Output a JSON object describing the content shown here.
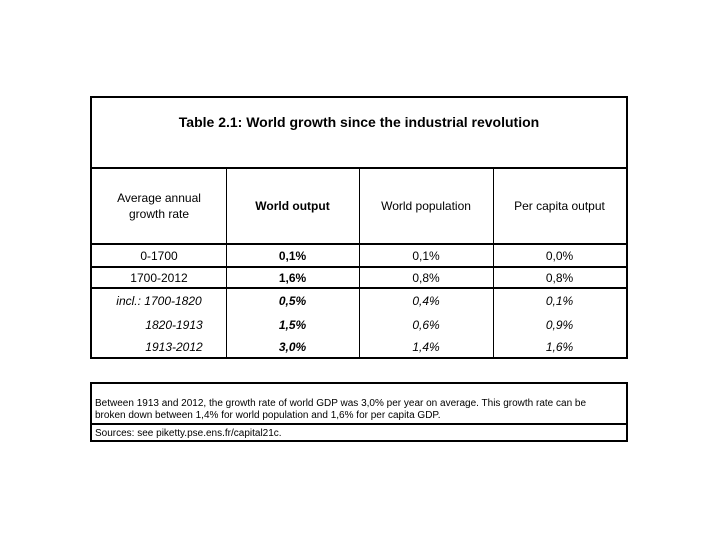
{
  "table": {
    "title": "Table 2.1: World growth since the industrial revolution",
    "headers": [
      "Average annual growth rate",
      "World output",
      "World population",
      "Per capita output"
    ],
    "rows": [
      {
        "label": "0-1700",
        "output": "0,1%",
        "population": "0,1%",
        "per_capita": "0,0%"
      },
      {
        "label": "1700-2012",
        "output": "1,6%",
        "population": "0,8%",
        "per_capita": "0,8%"
      },
      {
        "label": "incl.: 1700-1820",
        "output": "0,5%",
        "population": "0,4%",
        "per_capita": "0,1%"
      },
      {
        "label": "1820-1913",
        "output": "1,5%",
        "population": "0,6%",
        "per_capita": "0,9%"
      },
      {
        "label": "1913-2012",
        "output": "3,0%",
        "population": "1,4%",
        "per_capita": "1,6%"
      }
    ]
  },
  "note": {
    "text": "Between 1913 and 2012, the growth rate of world GDP was 3,0% per year on average. This growth rate can be broken down between 1,4% for world population and 1,6% for per capita GDP.",
    "source": "Sources: see piketty.pse.ens.fr/capital21c."
  }
}
